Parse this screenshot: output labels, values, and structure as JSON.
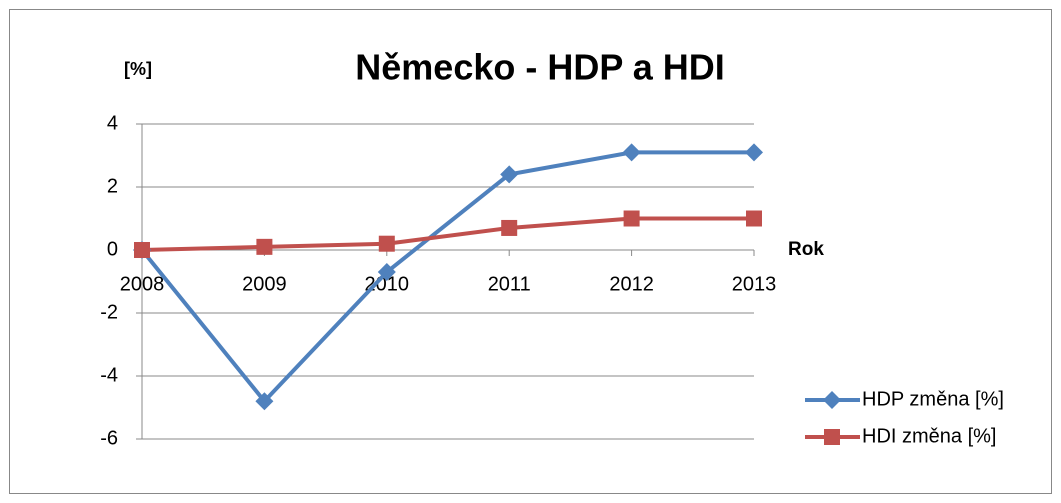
{
  "chart_data": {
    "type": "line",
    "title": "Německo - HDP a HDI",
    "y_label": "[%]",
    "x_label": "Rok",
    "categories": [
      "2008",
      "2009",
      "2010",
      "2011",
      "2012",
      "2013"
    ],
    "series": [
      {
        "name": "HDP změna [%]",
        "color": "#4f81bd",
        "marker": "diamond",
        "values": [
          0,
          -4.8,
          -0.7,
          2.4,
          3.1,
          3.1
        ]
      },
      {
        "name": "HDI změna [%]",
        "color": "#c0504d",
        "marker": "square",
        "values": [
          0,
          0.1,
          0.2,
          0.7,
          1.0,
          1.0
        ]
      }
    ],
    "ylim": [
      -6,
      4
    ],
    "yticks": [
      -6,
      -4,
      -2,
      0,
      2,
      4
    ],
    "grid": true,
    "legend": "right"
  }
}
